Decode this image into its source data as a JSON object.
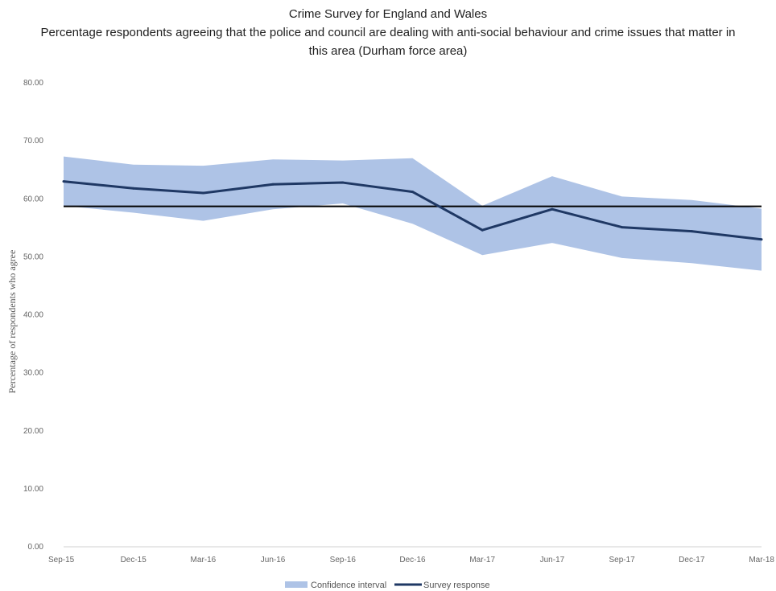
{
  "chart_data": {
    "type": "line",
    "title": "Crime Survey for England and Wales",
    "subtitle": "Percentage respondents agreeing that the police and council are dealing with anti-social behaviour and crime issues that matter in this area (Durham force area)",
    "ylabel": "Percentage of respondents who agree",
    "xlabel": "",
    "categories": [
      "Sep-15",
      "Dec-15",
      "Mar-16",
      "Jun-16",
      "Sep-16",
      "Dec-16",
      "Mar-17",
      "Jun-17",
      "Sep-17",
      "Dec-17",
      "Mar-18"
    ],
    "ylim": [
      0,
      80
    ],
    "yticks": [
      "0.00",
      "10.00",
      "20.00",
      "30.00",
      "40.00",
      "50.00",
      "60.00",
      "70.00",
      "80.00"
    ],
    "series": [
      {
        "name": "Confidence interval",
        "kind": "band",
        "color": "#aec3e6",
        "upper": [
          67.3,
          65.9,
          65.7,
          66.8,
          66.6,
          67.0,
          58.8,
          63.9,
          60.4,
          59.8,
          58.3
        ],
        "lower": [
          58.8,
          57.6,
          56.2,
          58.2,
          59.2,
          55.7,
          50.3,
          52.4,
          49.8,
          48.9,
          47.6
        ]
      },
      {
        "name": "Survey response",
        "kind": "line",
        "color": "#1f3864",
        "values": [
          63.0,
          61.8,
          61.0,
          62.5,
          62.8,
          61.2,
          54.6,
          58.2,
          55.1,
          54.4,
          53.0
        ]
      }
    ],
    "reference_line": {
      "value": 58.7,
      "color": "#000000"
    },
    "grid": false,
    "legend": "bottom-center"
  }
}
